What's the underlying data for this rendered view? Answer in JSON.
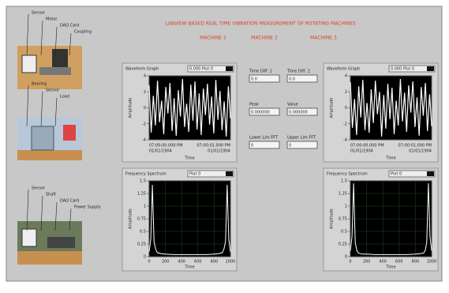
{
  "header": {
    "title": "LABVIEW BASED REAL TIME VIBRATION MEASUREMENT OF ROTATING MACHINES",
    "items": [
      "MACHINE 1",
      "MACHINE 2",
      "MACHINE 3"
    ]
  },
  "photos": [
    {
      "labels": [
        "Sensor",
        "Motor",
        "DAQ Card",
        "Coupling"
      ]
    },
    {
      "labels": [
        "Bearing",
        "Sensor",
        "Load"
      ]
    },
    {
      "labels": [
        "Sensor",
        "Shaft",
        "DAQ Card",
        "Power Supply"
      ]
    }
  ],
  "waveform_graphs": [
    {
      "label": "Waveform Graph",
      "legend": "0.000 Plot 0",
      "y_title": "Amplitude",
      "x_title": "Time",
      "ylim": [
        -4,
        4
      ],
      "yticks": [
        -4,
        -2,
        0,
        2,
        4
      ],
      "x_labels": [
        "07:00:00.000 PM",
        "01/01/1904",
        "07:00:01.000 PM",
        "01/01/1904"
      ],
      "values": [
        2.8,
        -3.1,
        1.5,
        -2.2,
        3.4,
        -1.8,
        0.9,
        -3.3,
        2.6,
        -0.7,
        3.1,
        -2.9,
        1.2,
        -3.5,
        2.2,
        -1.1,
        3.6,
        -2.4,
        0.5,
        -3.0,
        2.9,
        -1.6,
        3.3,
        -2.7,
        1.8,
        -3.4,
        2.4,
        -0.9,
        3.0,
        -2.1,
        1.4,
        -3.2,
        3.5,
        -1.5,
        2.1,
        -2.8,
        0.8,
        -3.6,
        2.7,
        -1.3
      ]
    },
    {
      "label": "Waveform Graph",
      "legend": "0.000 Plot 0",
      "y_title": "Amplitude",
      "x_title": "Time",
      "ylim": [
        -4,
        4
      ],
      "yticks": [
        -4,
        -2,
        0,
        2,
        4
      ],
      "x_labels": [
        "07:00:00.000 PM",
        "01/01/1904",
        "07:00:01.000 PM",
        "01/01/1904"
      ],
      "values": [
        3.2,
        -2.5,
        1.1,
        -3.4,
        2.7,
        -1.2,
        3.5,
        -2.8,
        0.6,
        -3.1,
        2.3,
        -1.9,
        3.4,
        -0.8,
        2.0,
        -3.6,
        1.6,
        -2.6,
        3.0,
        -1.4,
        2.5,
        -3.3,
        0.9,
        -2.2,
        3.6,
        -1.7,
        1.9,
        -3.0,
        2.8,
        -0.6,
        3.3,
        -2.4,
        1.3,
        -3.5,
        2.6,
        -1.0,
        3.1,
        -2.9,
        1.7,
        -2.3
      ]
    }
  ],
  "spectrum_graphs": [
    {
      "label": "Frequency Spectrum",
      "legend": "Plot 0",
      "y_title": "Amplitude",
      "x_title": "Time",
      "xlim": [
        0,
        1000
      ],
      "xticks": [
        0,
        200,
        400,
        600,
        800,
        1000
      ],
      "ylim": [
        0,
        1.5
      ],
      "yticks": [
        0,
        0.25,
        0.5,
        0.75,
        1,
        1.25,
        1.5
      ],
      "x": [
        0,
        20,
        40,
        60,
        80,
        100,
        150,
        200,
        300,
        400,
        500,
        600,
        700,
        800,
        850,
        900,
        920,
        940,
        960,
        980,
        1000
      ],
      "values": [
        0.1,
        0.35,
        1.42,
        0.3,
        0.15,
        0.08,
        0.06,
        0.05,
        0.04,
        0.04,
        0.04,
        0.04,
        0.04,
        0.05,
        0.06,
        0.08,
        0.15,
        0.3,
        1.42,
        0.35,
        0.1
      ]
    },
    {
      "label": "Frequency Spectrum",
      "legend": "Plot 0",
      "y_title": "Amplitude",
      "x_title": "Time",
      "xlim": [
        0,
        1000
      ],
      "xticks": [
        0,
        200,
        400,
        600,
        800,
        1000
      ],
      "ylim": [
        0,
        1.5
      ],
      "yticks": [
        0,
        0.25,
        0.5,
        0.75,
        1,
        1.25,
        1.5
      ],
      "x": [
        0,
        20,
        40,
        60,
        80,
        100,
        150,
        200,
        300,
        400,
        500,
        600,
        700,
        800,
        850,
        900,
        920,
        940,
        960,
        980,
        1000
      ],
      "values": [
        0.12,
        0.4,
        1.45,
        0.28,
        0.12,
        0.07,
        0.05,
        0.05,
        0.04,
        0.04,
        0.04,
        0.04,
        0.04,
        0.05,
        0.06,
        0.07,
        0.12,
        0.28,
        1.45,
        0.4,
        0.12
      ]
    }
  ],
  "controls": [
    {
      "label": "Time Diff. 1",
      "value": "0.0"
    },
    {
      "label": "Time Diff. 2",
      "value": "0.0"
    },
    {
      "label": "Peak",
      "value": "0.000000"
    },
    {
      "label": "Value",
      "value": "0.000000"
    },
    {
      "label": "Lower Lim FFT",
      "value": "0"
    },
    {
      "label": "Upper Lim FFT",
      "value": "0"
    }
  ]
}
